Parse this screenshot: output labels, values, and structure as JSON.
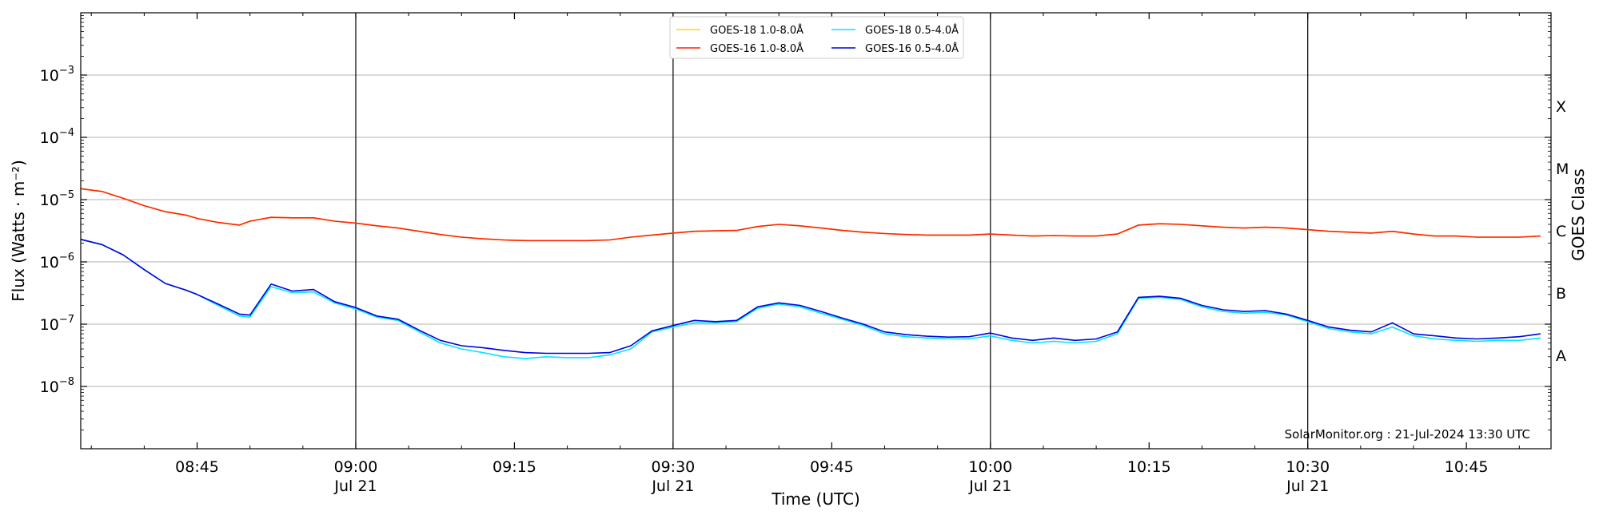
{
  "chart_data": {
    "type": "line",
    "xlabel": "Time (UTC)",
    "ylabel": "Flux (Watts · m⁻²)",
    "y2label": "GOES Class",
    "credit": "SolarMonitor.org : 21-Jul-2024 13:30 UTC",
    "y_scale": "log",
    "ylim": [
      1e-09,
      0.01
    ],
    "xlim": [
      "08:34",
      "10:53"
    ],
    "x_ticks": [
      {
        "t": "08:45",
        "label": "08:45",
        "date": ""
      },
      {
        "t": "09:00",
        "label": "09:00",
        "date": "Jul 21"
      },
      {
        "t": "09:15",
        "label": "09:15",
        "date": ""
      },
      {
        "t": "09:30",
        "label": "09:30",
        "date": "Jul 21"
      },
      {
        "t": "09:45",
        "label": "09:45",
        "date": ""
      },
      {
        "t": "10:00",
        "label": "10:00",
        "date": "Jul 21"
      },
      {
        "t": "10:15",
        "label": "10:15",
        "date": ""
      },
      {
        "t": "10:30",
        "label": "10:30",
        "date": "Jul 21"
      },
      {
        "t": "10:45",
        "label": "10:45",
        "date": ""
      }
    ],
    "vertical_lines": [
      "09:00",
      "09:30",
      "10:00",
      "10:30"
    ],
    "y_ticks": [
      {
        "value": 1e-08,
        "label": "10−8"
      },
      {
        "value": 1e-07,
        "label": "10−7"
      },
      {
        "value": 1e-06,
        "label": "10−6"
      },
      {
        "value": 1e-05,
        "label": "10−5"
      },
      {
        "value": 0.0001,
        "label": "10−4"
      },
      {
        "value": 0.001,
        "label": "10−3"
      }
    ],
    "goes_classes": [
      {
        "label": "A",
        "value": 3.16e-08
      },
      {
        "label": "B",
        "value": 3.16e-07
      },
      {
        "label": "C",
        "value": 3.16e-06
      },
      {
        "label": "M",
        "value": 3.16e-05
      },
      {
        "label": "X",
        "value": 0.000316
      }
    ],
    "grid": "horizontal",
    "legend_position": "top-center",
    "x": [
      "08:34",
      "08:36",
      "08:38",
      "08:40",
      "08:42",
      "08:44",
      "08:45",
      "08:47",
      "08:49",
      "08:50",
      "08:52",
      "08:54",
      "08:56",
      "08:58",
      "09:00",
      "09:02",
      "09:04",
      "09:06",
      "09:08",
      "09:10",
      "09:12",
      "09:14",
      "09:16",
      "09:18",
      "09:20",
      "09:22",
      "09:24",
      "09:26",
      "09:28",
      "09:30",
      "09:32",
      "09:34",
      "09:36",
      "09:38",
      "09:40",
      "09:42",
      "09:44",
      "09:46",
      "09:48",
      "09:50",
      "09:52",
      "09:54",
      "09:56",
      "09:58",
      "10:00",
      "10:02",
      "10:04",
      "10:06",
      "10:08",
      "10:10",
      "10:12",
      "10:14",
      "10:16",
      "10:18",
      "10:20",
      "10:22",
      "10:24",
      "10:26",
      "10:28",
      "10:30",
      "10:32",
      "10:34",
      "10:36",
      "10:38",
      "10:40",
      "10:42",
      "10:44",
      "10:46",
      "10:48",
      "10:50",
      "10:52"
    ],
    "series": [
      {
        "name": "GOES-18 1.0-8.0Å",
        "color": "#ffd700",
        "values": [
          1.5e-05,
          1.35e-05,
          1.05e-05,
          8e-06,
          6.4e-06,
          5.6e-06,
          5e-06,
          4.3e-06,
          3.9e-06,
          4.5e-06,
          5.2e-06,
          5.1e-06,
          5.1e-06,
          4.5e-06,
          4.2e-06,
          3.8e-06,
          3.5e-06,
          3.1e-06,
          2.75e-06,
          2.5e-06,
          2.35e-06,
          2.25e-06,
          2.2e-06,
          2.2e-06,
          2.2e-06,
          2.2e-06,
          2.25e-06,
          2.5e-06,
          2.7e-06,
          2.9e-06,
          3.1e-06,
          3.15e-06,
          3.2e-06,
          3.7e-06,
          4e-06,
          3.8e-06,
          3.5e-06,
          3.2e-06,
          3e-06,
          2.85e-06,
          2.75e-06,
          2.7e-06,
          2.7e-06,
          2.7e-06,
          2.8e-06,
          2.7e-06,
          2.6e-06,
          2.65e-06,
          2.6e-06,
          2.6e-06,
          2.8e-06,
          3.9e-06,
          4.1e-06,
          4e-06,
          3.8e-06,
          3.6e-06,
          3.5e-06,
          3.6e-06,
          3.5e-06,
          3.3e-06,
          3.1e-06,
          3e-06,
          2.9e-06,
          3.1e-06,
          2.8e-06,
          2.6e-06,
          2.6e-06,
          2.5e-06,
          2.5e-06,
          2.5e-06,
          2.6e-06
        ]
      },
      {
        "name": "GOES-16 1.0-8.0Å",
        "color": "#ff2200",
        "values": [
          1.5e-05,
          1.35e-05,
          1.05e-05,
          8e-06,
          6.4e-06,
          5.6e-06,
          5e-06,
          4.3e-06,
          3.9e-06,
          4.5e-06,
          5.2e-06,
          5.1e-06,
          5.1e-06,
          4.5e-06,
          4.2e-06,
          3.8e-06,
          3.5e-06,
          3.1e-06,
          2.75e-06,
          2.5e-06,
          2.35e-06,
          2.25e-06,
          2.2e-06,
          2.2e-06,
          2.2e-06,
          2.2e-06,
          2.25e-06,
          2.5e-06,
          2.7e-06,
          2.9e-06,
          3.1e-06,
          3.15e-06,
          3.2e-06,
          3.7e-06,
          4e-06,
          3.8e-06,
          3.5e-06,
          3.2e-06,
          3e-06,
          2.85e-06,
          2.75e-06,
          2.7e-06,
          2.7e-06,
          2.7e-06,
          2.8e-06,
          2.7e-06,
          2.6e-06,
          2.65e-06,
          2.6e-06,
          2.6e-06,
          2.8e-06,
          3.9e-06,
          4.1e-06,
          4e-06,
          3.8e-06,
          3.6e-06,
          3.5e-06,
          3.6e-06,
          3.5e-06,
          3.3e-06,
          3.1e-06,
          3e-06,
          2.9e-06,
          3.1e-06,
          2.8e-06,
          2.6e-06,
          2.6e-06,
          2.5e-06,
          2.5e-06,
          2.5e-06,
          2.6e-06
        ]
      },
      {
        "name": "GOES-18 0.5-4.0Å",
        "color": "#00e5ff",
        "values": [
          2.3e-06,
          1.9e-06,
          1.3e-06,
          7.5e-07,
          4.5e-07,
          3.5e-07,
          3e-07,
          2e-07,
          1.35e-07,
          1.3e-07,
          4e-07,
          3.2e-07,
          3.3e-07,
          2.2e-07,
          1.75e-07,
          1.3e-07,
          1.15e-07,
          7.5e-08,
          5e-08,
          4e-08,
          3.5e-08,
          3e-08,
          2.8e-08,
          3e-08,
          2.9e-08,
          2.9e-08,
          3.2e-08,
          4e-08,
          7.5e-08,
          9e-08,
          1.05e-07,
          1.05e-07,
          1.1e-07,
          1.8e-07,
          2.1e-07,
          1.9e-07,
          1.5e-07,
          1.2e-07,
          9.5e-08,
          7e-08,
          6.3e-08,
          6e-08,
          5.8e-08,
          5.8e-08,
          6.5e-08,
          5.5e-08,
          5e-08,
          5.3e-08,
          5e-08,
          5.3e-08,
          7e-08,
          2.6e-07,
          2.7e-07,
          2.5e-07,
          1.9e-07,
          1.6e-07,
          1.5e-07,
          1.55e-07,
          1.4e-07,
          1.1e-07,
          8.5e-08,
          7.5e-08,
          7e-08,
          9e-08,
          6.5e-08,
          5.8e-08,
          5.5e-08,
          5.3e-08,
          5.5e-08,
          5.5e-08,
          6e-08
        ]
      },
      {
        "name": "GOES-16 0.5-4.0Å",
        "color": "#0000dd",
        "values": [
          2.3e-06,
          1.9e-06,
          1.3e-06,
          7.5e-07,
          4.5e-07,
          3.5e-07,
          3e-07,
          2.1e-07,
          1.45e-07,
          1.4e-07,
          4.4e-07,
          3.4e-07,
          3.6e-07,
          2.3e-07,
          1.85e-07,
          1.35e-07,
          1.2e-07,
          8e-08,
          5.5e-08,
          4.5e-08,
          4.2e-08,
          3.8e-08,
          3.5e-08,
          3.4e-08,
          3.4e-08,
          3.4e-08,
          3.5e-08,
          4.5e-08,
          7.8e-08,
          9.5e-08,
          1.15e-07,
          1.1e-07,
          1.15e-07,
          1.9e-07,
          2.2e-07,
          2e-07,
          1.6e-07,
          1.25e-07,
          1e-07,
          7.5e-08,
          6.8e-08,
          6.4e-08,
          6.2e-08,
          6.3e-08,
          7.2e-08,
          6e-08,
          5.5e-08,
          6e-08,
          5.5e-08,
          5.8e-08,
          7.5e-08,
          2.7e-07,
          2.8e-07,
          2.6e-07,
          2e-07,
          1.7e-07,
          1.6e-07,
          1.65e-07,
          1.45e-07,
          1.15e-07,
          9e-08,
          8e-08,
          7.5e-08,
          1.05e-07,
          7e-08,
          6.5e-08,
          6e-08,
          5.8e-08,
          6e-08,
          6.3e-08,
          7e-08
        ]
      }
    ]
  }
}
